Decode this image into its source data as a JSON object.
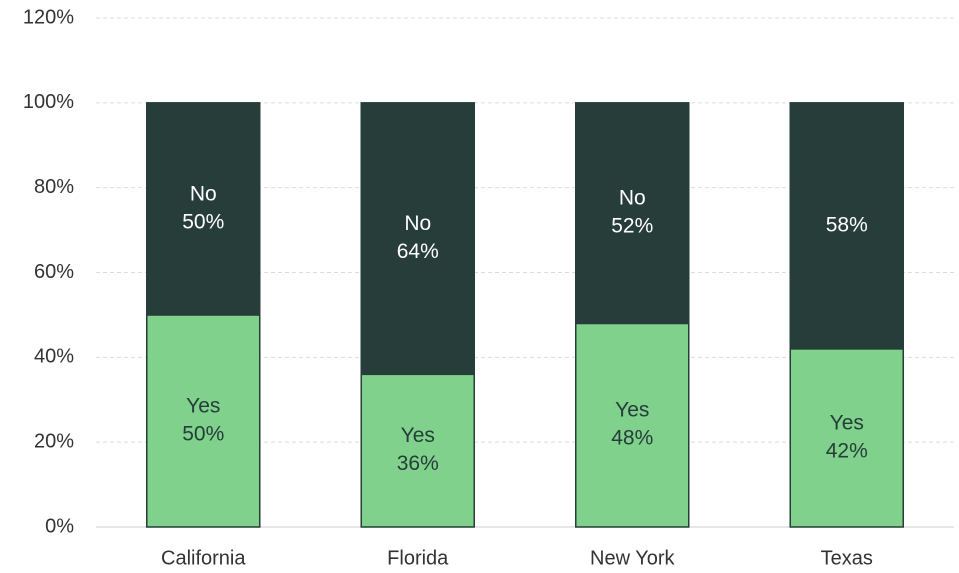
{
  "chart_data": {
    "type": "stacked_bar",
    "categories": [
      "California",
      "Florida",
      "New York",
      "Texas"
    ],
    "series": [
      {
        "name": "Yes",
        "color": "#7fd18b",
        "values": [
          50,
          36,
          48,
          42
        ],
        "value_labels": [
          [
            "Yes",
            "50%"
          ],
          [
            "Yes",
            "36%"
          ],
          [
            "Yes",
            "48%"
          ],
          [
            "Yes",
            "42%"
          ]
        ]
      },
      {
        "name": "No",
        "color": "#263d3a",
        "values": [
          50,
          64,
          52,
          58
        ],
        "value_labels": [
          [
            "No",
            "50%"
          ],
          [
            "No",
            "64%"
          ],
          [
            "No",
            "52%"
          ],
          [
            "58%"
          ]
        ]
      }
    ],
    "ylim": [
      0,
      120
    ],
    "yticks": [
      {
        "value": 0,
        "label": "0%"
      },
      {
        "value": 20,
        "label": "20%"
      },
      {
        "value": 40,
        "label": "40%"
      },
      {
        "value": 60,
        "label": "60%"
      },
      {
        "value": 80,
        "label": "80%"
      },
      {
        "value": 100,
        "label": "100%"
      },
      {
        "value": 120,
        "label": "120%"
      }
    ],
    "grid": true
  }
}
